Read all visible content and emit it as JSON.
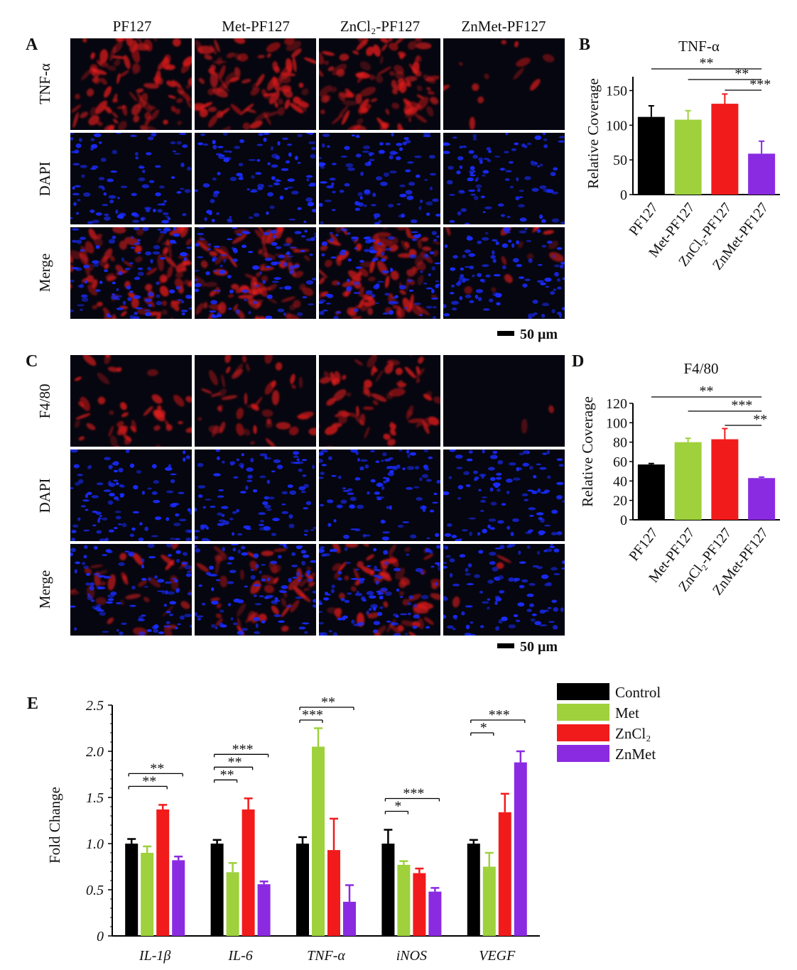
{
  "panel_letters": {
    "a": "A",
    "b": "B",
    "c": "C",
    "d": "D",
    "e": "E"
  },
  "micrograph": {
    "columns": [
      "PF127",
      "Met-PF127",
      "ZnCl₂-PF127",
      "ZnMet-PF127"
    ],
    "rows_top": [
      "TNF-α",
      "DAPI",
      "Merge"
    ],
    "rows_bottom": [
      "F4/80",
      "DAPI",
      "Merge"
    ],
    "scale_bar": "50 μm",
    "red_intensity_top": [
      0.62,
      0.55,
      0.68,
      0.08
    ],
    "red_intensity_bottom": [
      0.28,
      0.3,
      0.42,
      0.02
    ],
    "colors": {
      "nuclei": "#1a2cff",
      "stain": "#e11b1b",
      "background": "#05060f"
    }
  },
  "chart_data": [
    {
      "type": "bar",
      "title": "TNF-α",
      "ylabel": "Relative Coverage",
      "categories": [
        "PF127",
        "Met-PF127",
        "ZnCl₂-PF127",
        "ZnMet-PF127"
      ],
      "values": [
        112,
        108,
        131,
        59
      ],
      "errors": [
        16,
        13,
        14,
        18
      ],
      "colors": [
        "#000000",
        "#9ed13c",
        "#f21b1b",
        "#8a2be2"
      ],
      "ylim": [
        0,
        170
      ],
      "yticks": [
        "0",
        "50",
        "100",
        "150"
      ],
      "significance": [
        {
          "from": 0,
          "to": 3,
          "label": "**"
        },
        {
          "from": 1,
          "to": 3,
          "label": "**"
        },
        {
          "from": 2,
          "to": 3,
          "label": "***"
        }
      ]
    },
    {
      "type": "bar",
      "title": "F4/80",
      "ylabel": "Relative Coverage",
      "categories": [
        "PF127",
        "Met-PF127",
        "ZnCl₂-PF127",
        "ZnMet-PF127"
      ],
      "values": [
        57,
        80,
        83,
        43
      ],
      "errors": [
        1,
        4,
        11,
        1
      ],
      "colors": [
        "#000000",
        "#9ed13c",
        "#f21b1b",
        "#8a2be2"
      ],
      "ylim": [
        0,
        120
      ],
      "yticks": [
        "0",
        "20",
        "40",
        "60",
        "80",
        "100",
        "120"
      ],
      "significance": [
        {
          "from": 0,
          "to": 3,
          "label": "**"
        },
        {
          "from": 1,
          "to": 3,
          "label": "***"
        },
        {
          "from": 2,
          "to": 3,
          "label": "**"
        }
      ]
    },
    {
      "type": "bar",
      "ylabel": "Fold Change",
      "categories": [
        "IL-1β",
        "IL-6",
        "TNF-α",
        "iNOS",
        "VEGF"
      ],
      "series": [
        {
          "name": "Control",
          "color": "#000000",
          "values": [
            1.0,
            1.0,
            1.0,
            1.0,
            1.0
          ],
          "errors": [
            0.05,
            0.04,
            0.07,
            0.15,
            0.04
          ]
        },
        {
          "name": "Met",
          "color": "#9ed13c",
          "values": [
            0.9,
            0.69,
            2.05,
            0.77,
            0.75
          ],
          "errors": [
            0.07,
            0.1,
            0.2,
            0.04,
            0.15
          ]
        },
        {
          "name": "ZnCl₂",
          "color": "#f21b1b",
          "values": [
            1.37,
            1.37,
            0.93,
            0.68,
            1.34
          ],
          "errors": [
            0.05,
            0.12,
            0.34,
            0.05,
            0.2
          ]
        },
        {
          "name": "ZnMet",
          "color": "#8a2be2",
          "values": [
            0.82,
            0.56,
            0.37,
            0.48,
            1.88
          ],
          "errors": [
            0.04,
            0.03,
            0.18,
            0.04,
            0.12
          ]
        }
      ],
      "ylim": [
        0,
        2.5
      ],
      "yticks": [
        "0",
        "0.5",
        "1.0",
        "1.5",
        "2.0",
        "2.5"
      ],
      "significance": [
        {
          "cat": 0,
          "from": 0,
          "to": 2,
          "label": "**",
          "level": 1
        },
        {
          "cat": 0,
          "from": 0,
          "to": 3,
          "label": "**",
          "level": 2
        },
        {
          "cat": 1,
          "from": 0,
          "to": 1,
          "label": "**",
          "level": 1
        },
        {
          "cat": 1,
          "from": 0,
          "to": 2,
          "label": "**",
          "level": 2
        },
        {
          "cat": 1,
          "from": 0,
          "to": 3,
          "label": "***",
          "level": 3
        },
        {
          "cat": 2,
          "from": 0,
          "to": 1,
          "label": "***",
          "level": 1
        },
        {
          "cat": 2,
          "from": 0,
          "to": 3,
          "label": "**",
          "level": 2
        },
        {
          "cat": 3,
          "from": 0,
          "to": 1,
          "label": "*",
          "level": 1
        },
        {
          "cat": 3,
          "from": 0,
          "to": 3,
          "label": "***",
          "level": 2
        },
        {
          "cat": 4,
          "from": 0,
          "to": 1,
          "label": "*",
          "level": 1
        },
        {
          "cat": 4,
          "from": 0,
          "to": 3,
          "label": "***",
          "level": 2
        }
      ]
    }
  ]
}
